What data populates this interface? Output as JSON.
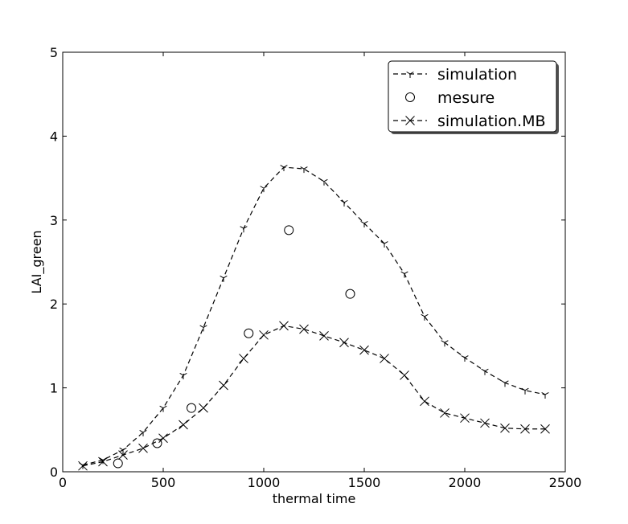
{
  "chart_data": {
    "type": "line",
    "xlabel": "thermal time",
    "ylabel": "LAI_green",
    "xlim": [
      0,
      2500
    ],
    "ylim": [
      0,
      5
    ],
    "xticks": [
      0,
      500,
      1000,
      1500,
      2000,
      2500
    ],
    "yticks": [
      0,
      1,
      2,
      3,
      4,
      5
    ],
    "grid": false,
    "legend_position": "top-right",
    "series": [
      {
        "name": "simulation",
        "style": "dashed line with tri-down markers",
        "color": "#000000",
        "x": [
          100,
          200,
          300,
          400,
          500,
          600,
          700,
          800,
          900,
          1000,
          1100,
          1200,
          1300,
          1400,
          1500,
          1600,
          1700,
          1800,
          1900,
          2000,
          2100,
          2200,
          2300,
          2400
        ],
        "y": [
          0.08,
          0.14,
          0.26,
          0.47,
          0.76,
          1.15,
          1.72,
          2.31,
          2.9,
          3.38,
          3.63,
          3.61,
          3.46,
          3.21,
          2.96,
          2.72,
          2.36,
          1.85,
          1.54,
          1.36,
          1.2,
          1.06,
          0.97,
          0.92
        ]
      },
      {
        "name": "mesure",
        "style": "open circle markers",
        "color": "#000000",
        "x": [
          275,
          470,
          640,
          925,
          1125,
          1430
        ],
        "y": [
          0.1,
          0.34,
          0.76,
          1.65,
          2.88,
          2.12
        ]
      },
      {
        "name": "simulation.MB",
        "style": "dashed line with x markers",
        "color": "#000000",
        "x": [
          100,
          200,
          300,
          400,
          500,
          600,
          700,
          800,
          900,
          1000,
          1100,
          1200,
          1300,
          1400,
          1500,
          1600,
          1700,
          1800,
          1900,
          2000,
          2100,
          2200,
          2300,
          2400
        ],
        "y": [
          0.07,
          0.12,
          0.2,
          0.28,
          0.4,
          0.56,
          0.76,
          1.03,
          1.35,
          1.63,
          1.74,
          1.7,
          1.62,
          1.54,
          1.45,
          1.35,
          1.15,
          0.84,
          0.7,
          0.64,
          0.58,
          0.52,
          0.51,
          0.51
        ]
      }
    ]
  }
}
